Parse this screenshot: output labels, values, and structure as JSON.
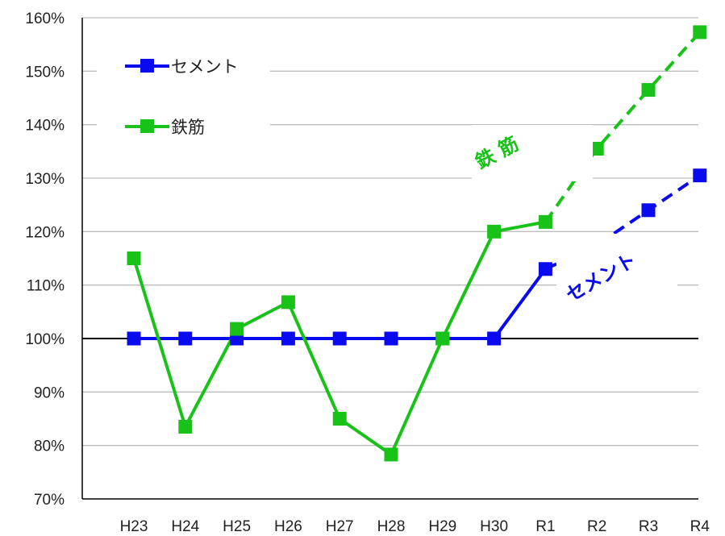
{
  "colors": {
    "cement": "#0a0aee",
    "rebar": "#19c219",
    "grid": "#bdbdbd",
    "axis": "#000000"
  },
  "chart_data": {
    "type": "line",
    "title": "",
    "xlabel": "",
    "ylabel": "",
    "categories": [
      "H23",
      "H24",
      "H25",
      "H26",
      "H27",
      "H28",
      "H29",
      "H30",
      "R1",
      "R2",
      "R3",
      "R4"
    ],
    "ylim": [
      70,
      160
    ],
    "yticks": [
      70,
      80,
      90,
      100,
      110,
      120,
      130,
      140,
      150,
      160
    ],
    "ytick_labels": [
      "70%",
      "80%",
      "90%",
      "100%",
      "110%",
      "120%",
      "130%",
      "140%",
      "150%",
      "160%"
    ],
    "grid": true,
    "reference_line": 100,
    "legend_position": "top-left",
    "series": [
      {
        "name": "セメント",
        "color_key": "cement",
        "values": [
          100,
          100,
          100,
          100,
          100,
          100,
          100,
          100,
          113,
          117.5,
          124,
          130.5
        ],
        "solid_until_index": 8
      },
      {
        "name": "鉄筋",
        "color_key": "rebar",
        "values": [
          115,
          83.5,
          101.8,
          106.8,
          85,
          78.3,
          100,
          120,
          121.8,
          135.5,
          146.5,
          157.3
        ],
        "solid_until_index": 8
      }
    ],
    "annotations": [
      {
        "text": "セメント",
        "series_index": 0
      },
      {
        "text": "鉄 筋",
        "series_index": 1
      }
    ]
  }
}
